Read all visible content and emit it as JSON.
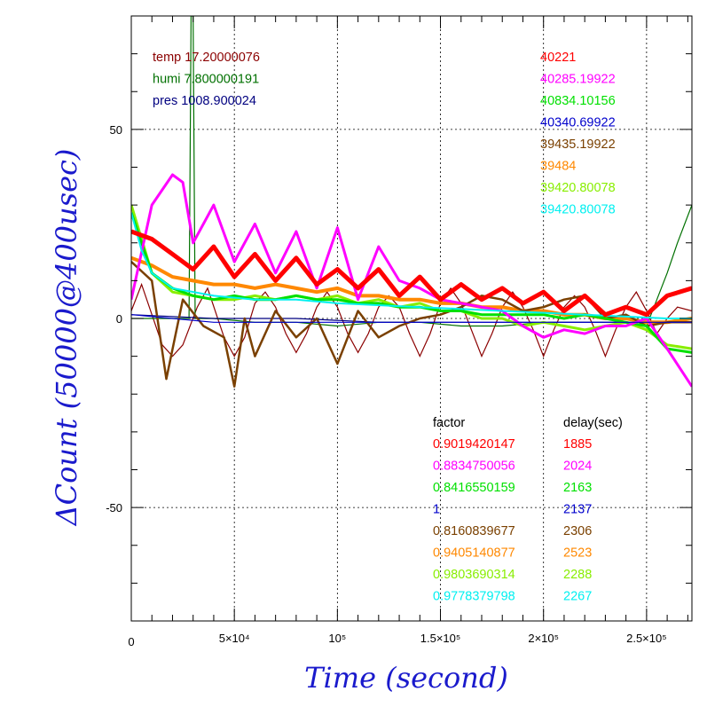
{
  "chart_data": {
    "type": "line",
    "title": "",
    "xlabel": "Time (second)",
    "ylabel": "ΔCount (50000@400usec)",
    "xlim": [
      0,
      272000
    ],
    "ylim": [
      -80,
      80
    ],
    "grid": true,
    "x_ticks": [
      {
        "value": 0,
        "label": "0"
      },
      {
        "value": 50000,
        "label": "5×10⁴"
      },
      {
        "value": 100000,
        "label": "10⁵"
      },
      {
        "value": 150000,
        "label": "1.5×10⁵"
      },
      {
        "value": 200000,
        "label": "2×10⁵"
      },
      {
        "value": 250000,
        "label": "2.5×10⁵"
      }
    ],
    "y_ticks": [
      {
        "value": 50,
        "label": "50"
      },
      {
        "value": 0,
        "label": "0"
      },
      {
        "value": -50,
        "label": "-50"
      }
    ],
    "env_legend": [
      {
        "label": "temp 17.20000076",
        "color": "#8b0000"
      },
      {
        "label": "humi 7.800000191",
        "color": "#007000"
      },
      {
        "label": "pres 1008.900024",
        "color": "#000080"
      }
    ],
    "factor_header": "factor",
    "delay_header": "delay(sec)",
    "series": [
      {
        "mean": "40221",
        "factor": "0.9019420147",
        "delay": "1885",
        "color": "#ff0000",
        "x": [
          0,
          10000,
          20000,
          30000,
          40000,
          50000,
          60000,
          70000,
          80000,
          90000,
          100000,
          110000,
          120000,
          130000,
          140000,
          150000,
          160000,
          170000,
          180000,
          190000,
          200000,
          210000,
          220000,
          230000,
          240000,
          250000,
          260000,
          272000
        ],
        "y": [
          23,
          21,
          17,
          13,
          19,
          11,
          17,
          10,
          16,
          9,
          13,
          8,
          13,
          6,
          11,
          5,
          9,
          5,
          8,
          4,
          7,
          2,
          6,
          1,
          3,
          1,
          6,
          8
        ]
      },
      {
        "mean": "40285.19922",
        "factor": "0.8834750056",
        "delay": "2024",
        "color": "#ff00ff",
        "x": [
          0,
          10000,
          20000,
          25000,
          30000,
          40000,
          50000,
          60000,
          70000,
          80000,
          90000,
          100000,
          110000,
          120000,
          130000,
          140000,
          150000,
          160000,
          170000,
          180000,
          190000,
          200000,
          210000,
          220000,
          230000,
          240000,
          250000,
          260000,
          272000
        ],
        "y": [
          5,
          30,
          38,
          36,
          20,
          30,
          15,
          25,
          12,
          23,
          8,
          24,
          5,
          19,
          10,
          8,
          5,
          4,
          3,
          2,
          -2,
          -5,
          -3,
          -4,
          -2,
          -2,
          0,
          -8,
          -18
        ]
      },
      {
        "mean": "40834.10156",
        "factor": "0.8416550159",
        "delay": "2163",
        "color": "#00e000",
        "x": [
          0,
          10000,
          20000,
          30000,
          40000,
          50000,
          60000,
          70000,
          80000,
          90000,
          100000,
          110000,
          120000,
          130000,
          140000,
          150000,
          160000,
          170000,
          180000,
          190000,
          200000,
          210000,
          220000,
          230000,
          240000,
          250000,
          260000,
          272000
        ],
        "y": [
          28,
          12,
          8,
          6,
          5,
          6,
          5,
          5,
          6,
          5,
          5,
          4,
          4,
          3,
          3,
          2,
          2,
          1,
          1,
          1,
          1,
          0,
          1,
          0,
          -1,
          -2,
          -8,
          -9
        ]
      },
      {
        "mean": "40340.69922",
        "factor": "1",
        "delay": "2137",
        "color": "#0000cc",
        "x": [
          0,
          20000,
          40000,
          60000,
          80000,
          100000,
          120000,
          140000,
          160000,
          180000,
          200000,
          220000,
          240000,
          260000,
          272000
        ],
        "y": [
          1,
          0,
          -1,
          -1,
          -1,
          -1,
          -1,
          -1,
          -1,
          -1,
          -1,
          -1,
          -1,
          -1,
          -1
        ]
      },
      {
        "mean": "39435.19922",
        "factor": "0.8160839677",
        "delay": "2306",
        "color": "#7a4000",
        "x": [
          0,
          10000,
          17000,
          25000,
          35000,
          45000,
          50000,
          55000,
          60000,
          70000,
          80000,
          90000,
          100000,
          110000,
          120000,
          130000,
          140000,
          150000,
          160000,
          170000,
          180000,
          190000,
          200000,
          210000,
          220000,
          230000,
          240000,
          250000,
          260000,
          272000
        ],
        "y": [
          15,
          10,
          -16,
          5,
          -2,
          -5,
          -18,
          0,
          -10,
          2,
          -5,
          0,
          -12,
          2,
          -5,
          -2,
          0,
          1,
          3,
          6,
          5,
          2,
          3,
          5,
          6,
          0,
          1,
          -2,
          -1,
          -1
        ]
      },
      {
        "mean": "39484",
        "factor": "0.9405140877",
        "delay": "2523",
        "color": "#ff8800",
        "x": [
          0,
          10000,
          20000,
          30000,
          40000,
          50000,
          60000,
          70000,
          80000,
          90000,
          100000,
          110000,
          120000,
          130000,
          140000,
          150000,
          160000,
          170000,
          180000,
          190000,
          200000,
          210000,
          220000,
          230000,
          240000,
          250000,
          260000,
          272000
        ],
        "y": [
          16,
          14,
          11,
          10,
          9,
          9,
          8,
          9,
          8,
          7,
          8,
          6,
          6,
          5,
          5,
          4,
          4,
          3,
          3,
          2,
          2,
          1,
          1,
          0,
          0,
          -1,
          -1,
          0
        ]
      },
      {
        "mean": "39420.80078",
        "factor": "0.9803690314",
        "delay": "2288",
        "color": "#88ee00",
        "x": [
          0,
          10000,
          20000,
          30000,
          40000,
          50000,
          60000,
          70000,
          80000,
          90000,
          100000,
          110000,
          120000,
          130000,
          140000,
          150000,
          160000,
          170000,
          180000,
          190000,
          200000,
          210000,
          220000,
          230000,
          240000,
          250000,
          260000,
          272000
        ],
        "y": [
          30,
          12,
          7,
          6,
          5,
          5,
          6,
          5,
          6,
          5,
          6,
          4,
          5,
          3,
          4,
          2,
          2,
          0,
          0,
          -2,
          -1,
          -2,
          -3,
          -2,
          -1,
          -3,
          -7,
          -8
        ]
      },
      {
        "mean": "39420.80078",
        "factor": "0.9778379798",
        "delay": "2267",
        "color": "#00f0f0",
        "x": [
          0,
          5000,
          10000,
          20000,
          40000,
          60000,
          80000,
          100000,
          140000,
          180000,
          220000,
          260000,
          272000
        ],
        "y": [
          28,
          18,
          12,
          8,
          6,
          5,
          5,
          4,
          3,
          2,
          1,
          0,
          0
        ]
      }
    ],
    "environment_traces": [
      {
        "name": "temp",
        "color": "#8b0000",
        "x": [
          0,
          5000,
          15000,
          20000,
          25000,
          32000,
          37000,
          45000,
          50000,
          55000,
          60000,
          65000,
          70000,
          75000,
          80000,
          85000,
          90000,
          95000,
          100000,
          105000,
          110000,
          115000,
          120000,
          125000,
          130000,
          135000,
          140000,
          145000,
          150000,
          155000,
          160000,
          165000,
          170000,
          175000,
          180000,
          185000,
          190000,
          195000,
          200000,
          205000,
          210000,
          215000,
          220000,
          225000,
          230000,
          235000,
          240000,
          245000,
          250000,
          255000,
          260000,
          265000,
          272000
        ],
        "y": [
          2,
          9,
          -7,
          -10,
          -7,
          3,
          8,
          -5,
          -10,
          -5,
          4,
          7,
          3,
          -4,
          -9,
          -4,
          3,
          7,
          3,
          -4,
          -9,
          -4,
          3,
          6,
          3,
          -4,
          -10,
          -4,
          4,
          8,
          4,
          -3,
          -10,
          -4,
          3,
          7,
          3,
          -3,
          -10,
          -3,
          3,
          6,
          3,
          -3,
          -10,
          -3,
          3,
          7,
          2,
          -4,
          0,
          3,
          2
        ]
      },
      {
        "name": "humi",
        "color": "#007000",
        "x": [
          0,
          20000,
          28000,
          29000,
          30000,
          31000,
          40000,
          60000,
          80000,
          100000,
          120000,
          140000,
          160000,
          180000,
          200000,
          220000,
          240000,
          250000,
          255000,
          260000,
          265000,
          272000
        ],
        "y": [
          0,
          0,
          0,
          80,
          80,
          0,
          0,
          -1,
          -1,
          -2,
          -1,
          -1,
          -2,
          -2,
          -1,
          -1,
          -1,
          -2,
          5,
          12,
          20,
          30
        ]
      },
      {
        "name": "pres",
        "color": "#000080",
        "x": [
          0,
          40000,
          80000,
          120000,
          160000,
          200000,
          240000,
          272000
        ],
        "y": [
          1,
          0,
          0,
          -1,
          -1,
          -1,
          -1,
          -1
        ]
      }
    ]
  }
}
